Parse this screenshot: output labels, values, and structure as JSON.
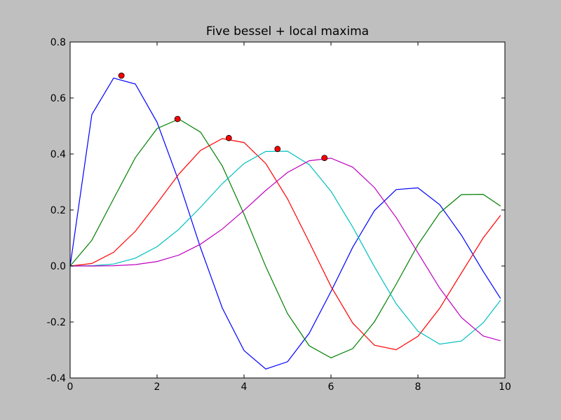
{
  "chart_data": {
    "type": "line",
    "title": "Five bessel + local maxima",
    "x": [
      0,
      0.5,
      1,
      1.5,
      2,
      2.5,
      3,
      3.5,
      4,
      4.5,
      5,
      5.5,
      6,
      6.5,
      7,
      7.5,
      8,
      8.5,
      9,
      9.5,
      9.9
    ],
    "series": [
      {
        "color": "#0000ff",
        "values": [
          0,
          0.541,
          0.671,
          0.65,
          0.513,
          0.302,
          0.065,
          -0.15,
          -0.302,
          -0.368,
          -0.342,
          -0.24,
          -0.091,
          0.067,
          0.198,
          0.273,
          0.279,
          0.219,
          0.11,
          -0.019,
          -0.116
        ]
      },
      {
        "color": "#008000",
        "values": [
          0,
          0.092,
          0.24,
          0.387,
          0.491,
          0.525,
          0.478,
          0.357,
          0.185,
          -0.002,
          -0.17,
          -0.285,
          -0.328,
          -0.295,
          -0.199,
          -0.065,
          0.076,
          0.19,
          0.255,
          0.256,
          0.214
        ]
      },
      {
        "color": "#ff0000",
        "values": [
          0,
          0.009,
          0.049,
          0.124,
          0.224,
          0.328,
          0.413,
          0.455,
          0.441,
          0.366,
          0.24,
          0.085,
          -0.073,
          -0.204,
          -0.283,
          -0.299,
          -0.251,
          -0.151,
          -0.025,
          0.1,
          0.181
        ]
      },
      {
        "color": "#00bfbf",
        "values": [
          0,
          0.001,
          0.007,
          0.028,
          0.069,
          0.131,
          0.21,
          0.294,
          0.366,
          0.409,
          0.41,
          0.362,
          0.267,
          0.139,
          -0.003,
          -0.135,
          -0.233,
          -0.279,
          -0.268,
          -0.203,
          -0.122
        ]
      },
      {
        "color": "#bf00bf",
        "values": [
          0,
          0.0,
          0.001,
          0.005,
          0.016,
          0.039,
          0.078,
          0.132,
          0.199,
          0.27,
          0.334,
          0.376,
          0.385,
          0.353,
          0.28,
          0.173,
          0.047,
          -0.079,
          -0.184,
          -0.25,
          -0.267
        ]
      }
    ],
    "maxima": {
      "color": "#ff0000",
      "x": [
        1.18,
        2.47,
        3.65,
        4.77,
        5.85
      ],
      "values": [
        0.68,
        0.525,
        0.457,
        0.418,
        0.386
      ]
    },
    "xlim": [
      0,
      10
    ],
    "xticks": [
      0,
      2,
      4,
      6,
      8,
      10
    ],
    "ylim": [
      -0.4,
      0.8
    ],
    "yticks": [
      -0.4,
      -0.2,
      {
        "value": 0,
        "label": "0.0"
      },
      0.2,
      0.4,
      0.6,
      0.8
    ]
  }
}
